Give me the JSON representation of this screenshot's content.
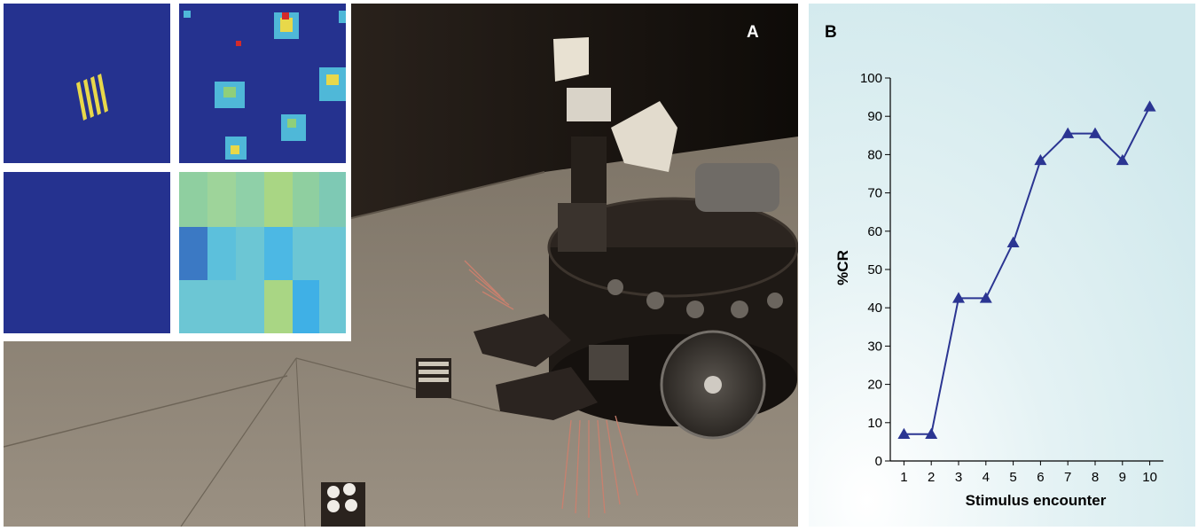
{
  "panel_a": {
    "label": "A",
    "colors": {
      "heatmap_bg": "#25328f",
      "floor": "#8c8274",
      "wall": "#1a1410",
      "robot": "#201a16",
      "stripe_yellow": "#e8d84a"
    }
  },
  "panel_b": {
    "label": "B",
    "colors": {
      "background": "#d6ecef",
      "series": "#2b3592",
      "axis": "#000000"
    }
  },
  "chart_data": {
    "type": "line",
    "title": "",
    "xlabel": "Stimulus encounter",
    "ylabel": "%CR",
    "x": [
      1,
      2,
      3,
      4,
      5,
      6,
      7,
      8,
      9,
      10
    ],
    "series": [
      {
        "values": [
          7,
          7,
          42.5,
          42.5,
          57,
          78.5,
          85.5,
          85.5,
          78.5,
          92.5
        ]
      }
    ],
    "xlim": [
      0.5,
      10.5
    ],
    "ylim": [
      0,
      100
    ],
    "yticks": [
      0,
      10,
      20,
      30,
      40,
      50,
      60,
      70,
      80,
      90,
      100
    ],
    "xticks": [
      1,
      2,
      3,
      4,
      5,
      6,
      7,
      8,
      9,
      10
    ],
    "marker": "triangle",
    "grid": false,
    "legend": "none"
  }
}
